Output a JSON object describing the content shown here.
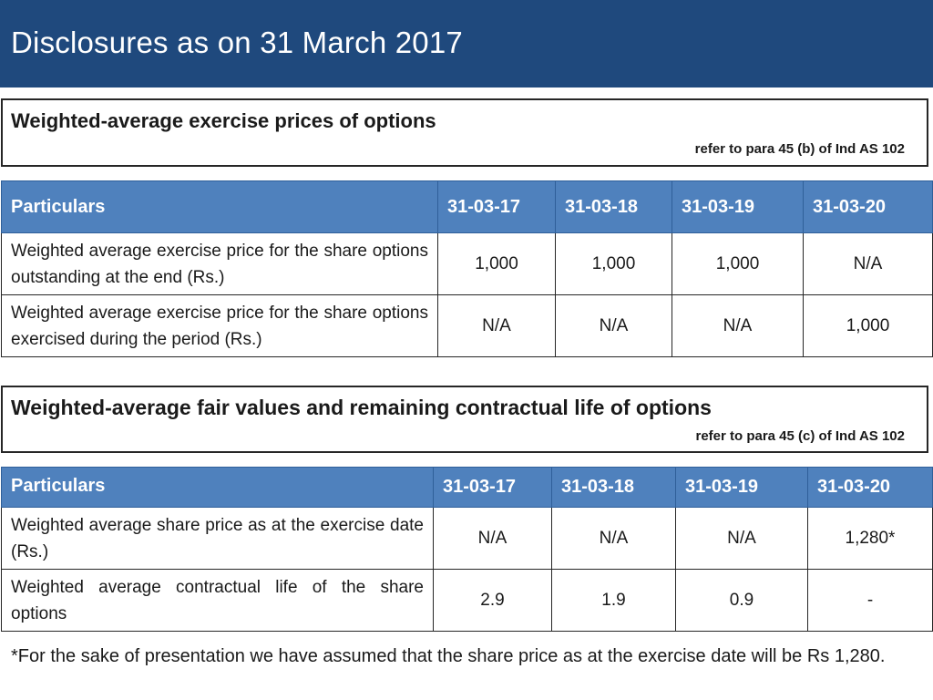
{
  "page": {
    "title": "Disclosures as on 31 March 2017"
  },
  "sections": [
    {
      "heading": "Weighted-average exercise prices of options",
      "reference": "refer to para 45 (b) of Ind AS 102",
      "table": {
        "headers": [
          "Particulars",
          "31-03-17",
          "31-03-18",
          "31-03-19",
          "31-03-20"
        ],
        "rows": [
          {
            "label": "Weighted average exercise price for the share options outstanding at the end (Rs.)",
            "values": [
              "1,000",
              "1,000",
              "1,000",
              "N/A"
            ]
          },
          {
            "label": "Weighted average exercise price for the share options exercised during the period (Rs.)",
            "values": [
              "N/A",
              "N/A",
              "N/A",
              "1,000"
            ]
          }
        ]
      }
    },
    {
      "heading": "Weighted-average fair values and remaining contractual life of options",
      "reference": "refer to para 45 (c) of Ind AS 102",
      "table": {
        "headers": [
          "Particulars",
          "31-03-17",
          "31-03-18",
          "31-03-19",
          "31-03-20"
        ],
        "rows": [
          {
            "label": "Weighted average share price as at the exercise date (Rs.)",
            "values": [
              "N/A",
              "N/A",
              "N/A",
              "1,280*"
            ]
          },
          {
            "label": "Weighted average contractual life of the share options",
            "values": [
              "2.9",
              "1.9",
              "0.9",
              "-"
            ]
          }
        ]
      }
    }
  ],
  "footnote": "*For the sake of presentation we have assumed that the share price as at the exercise date will be Rs 1,280.",
  "colors": {
    "title_bar": "#1f497d",
    "table_header": "#4f81bd"
  }
}
